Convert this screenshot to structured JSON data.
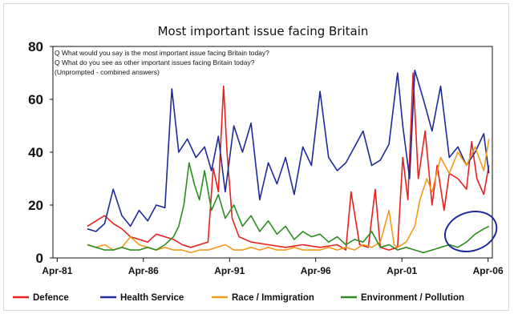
{
  "chart_data": {
    "type": "line",
    "title": "Most important issue facing Britain",
    "notes": [
      "Q What would you say is the most important issue facing Britain today?",
      "Q What do you see as other important issues facing Britain today?",
      "(Unprompted - combined answers)"
    ],
    "x_ticks": [
      "Apr-81",
      "Apr-86",
      "Apr-91",
      "Apr-96",
      "Apr-01",
      "Apr-06"
    ],
    "y_ticks": [
      "0",
      "20",
      "40",
      "60",
      "80"
    ],
    "ylim": [
      0,
      80
    ],
    "xlim": [
      1981.0,
      2006.5
    ],
    "grid": false,
    "legend_position": "bottom",
    "highlight": {
      "shape": "ellipse",
      "color": "#1f2a9a",
      "around": "Environment / Pollution",
      "x_range": [
        2004.0,
        2006.5
      ]
    },
    "series": [
      {
        "name": "Defence",
        "color": "#e8201e",
        "x": [
          1983.0,
          1983.5,
          1984.0,
          1984.5,
          1985.0,
          1985.5,
          1986.0,
          1986.5,
          1987.0,
          1987.5,
          1988.0,
          1988.5,
          1989.0,
          1989.5,
          1990.0,
          1990.3,
          1990.6,
          1990.9,
          1991.1,
          1991.4,
          1991.8,
          1992.5,
          1993.5,
          1994.5,
          1995.5,
          1996.5,
          1997.5,
          1998.0,
          1998.3,
          1998.8,
          1999.3,
          1999.7,
          2000.0,
          2000.5,
          2001.0,
          2001.3,
          2001.6,
          2001.9,
          2002.2,
          2002.6,
          2003.0,
          2003.3,
          2003.7,
          2004.0,
          2004.5,
          2005.0,
          2005.3,
          2005.6,
          2006.0,
          2006.3
        ],
        "y": [
          12,
          14,
          16,
          13,
          11,
          8,
          7,
          6,
          9,
          8,
          7,
          5,
          4,
          5,
          6,
          34,
          25,
          65,
          40,
          15,
          8,
          6,
          5,
          4,
          5,
          4,
          5,
          3,
          25,
          5,
          4,
          26,
          4,
          3,
          4,
          38,
          22,
          70,
          30,
          48,
          20,
          35,
          18,
          32,
          30,
          26,
          44,
          30,
          24,
          35
        ]
      },
      {
        "name": "Health Service",
        "color": "#1f2a9a",
        "x": [
          1983.0,
          1983.5,
          1984.0,
          1984.5,
          1985.0,
          1985.5,
          1986.0,
          1986.5,
          1987.0,
          1987.5,
          1987.9,
          1988.3,
          1988.8,
          1989.3,
          1989.8,
          1990.2,
          1990.6,
          1991.0,
          1991.5,
          1992.0,
          1992.5,
          1993.0,
          1993.5,
          1994.0,
          1994.5,
          1995.0,
          1995.5,
          1996.0,
          1996.5,
          1997.0,
          1997.5,
          1998.0,
          1998.5,
          1999.0,
          1999.5,
          2000.0,
          2000.5,
          2001.0,
          2001.3,
          2001.7,
          2002.0,
          2002.5,
          2003.0,
          2003.5,
          2004.0,
          2004.5,
          2005.0,
          2005.5,
          2006.0,
          2006.3
        ],
        "y": [
          11,
          10,
          13,
          26,
          16,
          12,
          18,
          14,
          20,
          19,
          64,
          40,
          45,
          38,
          42,
          33,
          46,
          25,
          50,
          40,
          51,
          22,
          36,
          28,
          38,
          24,
          42,
          35,
          63,
          38,
          33,
          36,
          42,
          48,
          35,
          37,
          43,
          70,
          50,
          30,
          71,
          60,
          48,
          65,
          38,
          42,
          35,
          40,
          47,
          32
        ]
      },
      {
        "name": "Race / Immigration",
        "color": "#f39a1c",
        "x": [
          1983.0,
          1983.5,
          1984.0,
          1984.5,
          1985.0,
          1985.5,
          1986.0,
          1986.5,
          1987.0,
          1987.5,
          1988.0,
          1988.5,
          1989.0,
          1989.5,
          1990.0,
          1990.5,
          1991.0,
          1991.5,
          1992.0,
          1992.5,
          1993.0,
          1993.5,
          1994.0,
          1994.5,
          1995.0,
          1995.5,
          1996.0,
          1996.5,
          1997.0,
          1997.5,
          1998.0,
          1998.5,
          1999.0,
          1999.5,
          2000.0,
          2000.5,
          2000.8,
          2001.0,
          2001.5,
          2002.0,
          2002.3,
          2002.7,
          2003.0,
          2003.5,
          2004.0,
          2004.5,
          2005.0,
          2005.5,
          2006.0,
          2006.3
        ],
        "y": [
          5,
          4,
          5,
          3,
          4,
          8,
          5,
          4,
          3,
          4,
          3,
          3,
          2,
          3,
          3,
          4,
          5,
          3,
          3,
          4,
          3,
          4,
          3,
          3,
          4,
          3,
          3,
          3,
          4,
          3,
          4,
          3,
          5,
          4,
          6,
          18,
          5,
          4,
          6,
          12,
          22,
          30,
          25,
          38,
          32,
          40,
          35,
          42,
          33,
          45
        ]
      },
      {
        "name": "Environment / Pollution",
        "color": "#2e8b20",
        "x": [
          1983.0,
          1983.5,
          1984.0,
          1984.5,
          1985.0,
          1985.5,
          1986.0,
          1986.5,
          1987.0,
          1987.5,
          1988.0,
          1988.3,
          1988.6,
          1988.9,
          1989.2,
          1989.5,
          1989.8,
          1990.2,
          1990.6,
          1991.0,
          1991.5,
          1992.0,
          1992.5,
          1993.0,
          1993.5,
          1994.0,
          1994.5,
          1995.0,
          1995.5,
          1996.0,
          1996.5,
          1997.0,
          1997.5,
          1998.0,
          1998.5,
          1999.0,
          1999.5,
          2000.0,
          2000.5,
          2001.0,
          2001.5,
          2002.0,
          2002.5,
          2003.0,
          2003.5,
          2004.0,
          2004.5,
          2005.0,
          2005.5,
          2006.0,
          2006.3
        ],
        "y": [
          5,
          4,
          3,
          3,
          4,
          3,
          3,
          4,
          3,
          5,
          8,
          12,
          20,
          36,
          28,
          22,
          33,
          18,
          24,
          15,
          20,
          12,
          16,
          10,
          14,
          9,
          12,
          7,
          10,
          8,
          9,
          6,
          8,
          5,
          7,
          6,
          10,
          4,
          5,
          3,
          4,
          3,
          2,
          3,
          4,
          5,
          4,
          6,
          9,
          11,
          12
        ]
      }
    ]
  }
}
